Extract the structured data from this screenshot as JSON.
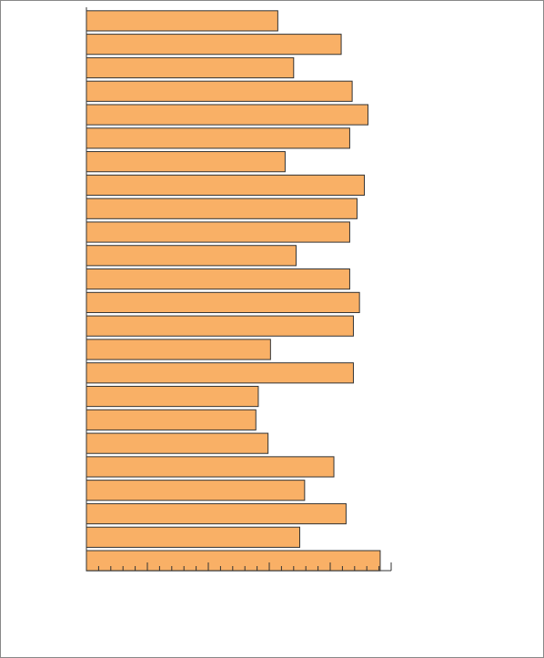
{
  "chart_data": {
    "type": "barh",
    "categories": [
      null,
      null,
      null,
      null,
      null,
      null,
      null,
      null,
      null,
      null,
      null,
      null,
      null,
      null,
      null,
      null,
      null,
      null,
      null,
      null,
      null,
      null,
      null,
      null
    ],
    "values": [
      15.7,
      20.9,
      17.0,
      21.8,
      23.1,
      21.6,
      16.3,
      22.8,
      22.2,
      21.6,
      17.2,
      21.6,
      22.4,
      21.9,
      15.1,
      21.9,
      14.1,
      13.9,
      14.9,
      20.3,
      17.9,
      21.3,
      17.5,
      24.1
    ],
    "color": "#f9b066",
    "xlim": [
      0,
      25
    ],
    "xticks": [
      0,
      1,
      2,
      3,
      4,
      5,
      6,
      7,
      8,
      9,
      10,
      11,
      12,
      13,
      14,
      15,
      16,
      17,
      18,
      19,
      20,
      21,
      22,
      23,
      24,
      25
    ],
    "grid": false
  }
}
